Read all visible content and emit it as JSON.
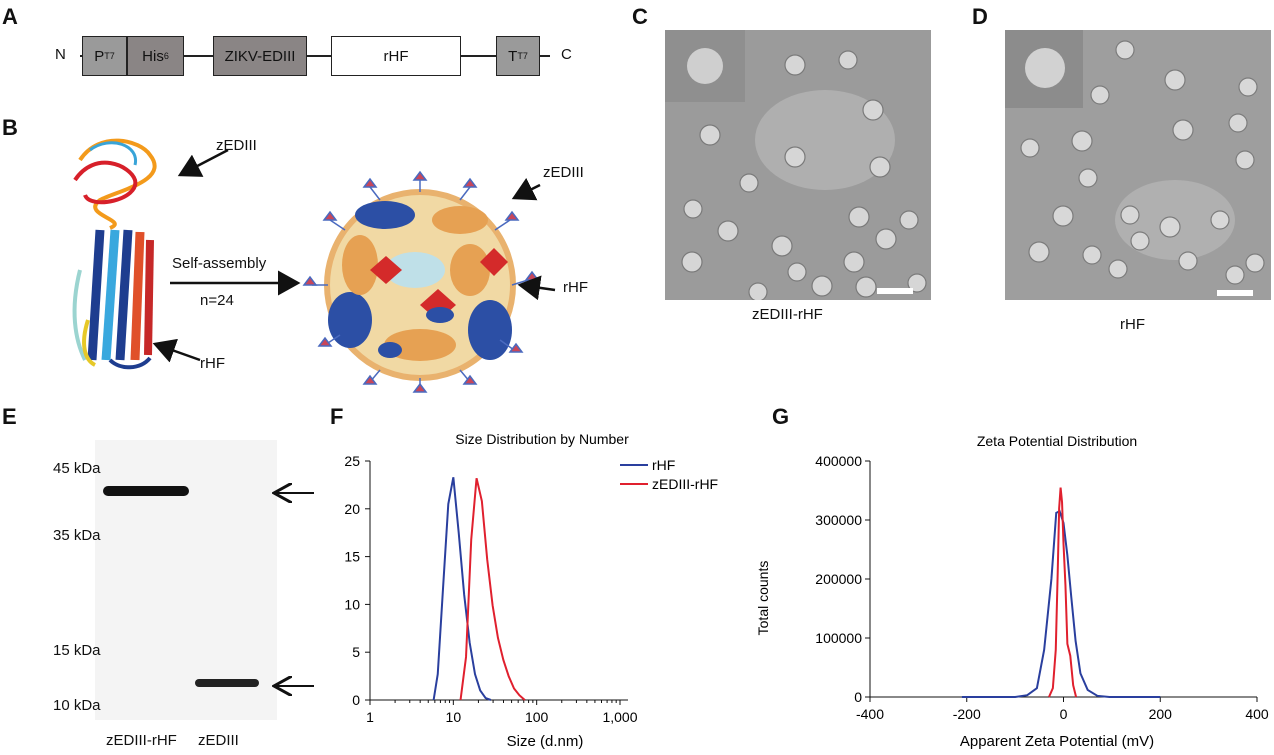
{
  "panels": {
    "A": "A",
    "B": "B",
    "C": "C",
    "D": "D",
    "E": "E",
    "F": "F",
    "G": "G"
  },
  "panelA": {
    "n_term": "N",
    "c_term": "C",
    "pt7": "P",
    "pt7_sub": "T7",
    "his": "His",
    "his_sub": "6",
    "edIII": "ZIKV-EDIII",
    "rhf": "rHF",
    "tt7": "T",
    "tt7_sub": "T7"
  },
  "panelB": {
    "label_zediii_mono": "zEDIII",
    "label_rhf_mono": "rHF",
    "self_assembly": "Self-assembly",
    "n24": "n=24",
    "label_zediii_cage": "zEDIII",
    "label_rhf_cage": "rHF"
  },
  "panelC": {
    "caption": "zEDIII-rHF"
  },
  "panelD": {
    "caption": "rHF"
  },
  "panelE": {
    "markers": [
      "45 kDa",
      "35 kDa",
      "15 kDa",
      "10 kDa"
    ],
    "lanes": [
      "zEDIII-rHF",
      "zEDIII"
    ]
  },
  "colors": {
    "rhf_line": "#2a3f9e",
    "zediii_line": "#e0202e"
  },
  "chart_data": [
    {
      "type": "line",
      "title": "Size Distribution by Number",
      "xlabel": "Size (d.nm)",
      "ylabel": "",
      "xscale": "log",
      "xlim": [
        1,
        1000
      ],
      "ylim": [
        0,
        25
      ],
      "xticks": [
        1,
        10,
        100,
        1000
      ],
      "xtick_labels": [
        "1",
        "10",
        "100",
        "1,000"
      ],
      "yticks": [
        0,
        5,
        10,
        15,
        20,
        25
      ],
      "legend": "top-right",
      "series": [
        {
          "name": "rHF",
          "color": "#2a3f9e",
          "x": [
            5.8,
            6.5,
            7.5,
            8.7,
            10.0,
            11.6,
            13.5,
            15.7,
            18.2,
            21.0,
            24.4,
            28.2
          ],
          "y": [
            0,
            2.7,
            11.5,
            20.5,
            23.3,
            17.5,
            11,
            6,
            2.7,
            1,
            0.2,
            0
          ]
        },
        {
          "name": "zEDIII-rHF",
          "color": "#e0202e",
          "x": [
            12.2,
            14.2,
            16.4,
            19.0,
            22.0,
            25.5,
            29.6,
            34.3,
            39.8,
            46.1,
            53.5,
            62,
            72
          ],
          "y": [
            0,
            4.5,
            16.8,
            23.2,
            20.8,
            14.7,
            9.9,
            6.5,
            4.2,
            2.5,
            1.2,
            0.5,
            0
          ]
        }
      ]
    },
    {
      "type": "line",
      "title": "Zeta Potential Distribution",
      "xlabel": "Apparent Zeta Potential (mV)",
      "ylabel": "Total counts",
      "xlim": [
        -400,
        400
      ],
      "ylim": [
        0,
        400000
      ],
      "xticks": [
        -400,
        -200,
        0,
        200,
        400
      ],
      "yticks": [
        0,
        100000,
        200000,
        300000,
        400000
      ],
      "series": [
        {
          "color": "#2a3f9e",
          "x": [
            -210,
            -100,
            -75,
            -55,
            -40,
            -25,
            -15,
            -8,
            0,
            8,
            16,
            25,
            35,
            50,
            70,
            95,
            200
          ],
          "y": [
            0,
            0,
            3000,
            15000,
            80000,
            200000,
            312000,
            315000,
            295000,
            240000,
            170000,
            95000,
            40000,
            12000,
            2000,
            0,
            0
          ]
        },
        {
          "color": "#e0202e",
          "x": [
            -30,
            -22,
            -16,
            -12,
            -9,
            -6,
            -3,
            0,
            4,
            8,
            14,
            20,
            26
          ],
          "y": [
            0,
            15000,
            80000,
            210000,
            320000,
            355000,
            330000,
            260000,
            190000,
            90000,
            70000,
            20000,
            0
          ]
        }
      ]
    }
  ]
}
